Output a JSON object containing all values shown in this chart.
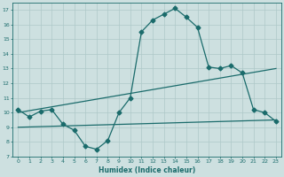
{
  "bg_color": "#cde0e0",
  "line_color": "#1a6b6b",
  "grid_color": "#aec8c8",
  "curve1_x": [
    0,
    1,
    2,
    3,
    4,
    5,
    6,
    7,
    8,
    9,
    10,
    11,
    12,
    13,
    14,
    15,
    16,
    17,
    18,
    19,
    20,
    21,
    22,
    23
  ],
  "curve1_y": [
    10.2,
    9.7,
    10.1,
    10.2,
    9.2,
    8.8,
    7.7,
    7.5,
    8.1,
    10.0,
    11.0,
    15.5,
    16.3,
    16.7,
    17.1,
    16.5,
    15.8,
    13.1,
    13.0,
    13.2,
    12.7,
    10.2,
    10.0,
    9.4
  ],
  "curve2_x": [
    0,
    23
  ],
  "curve2_y": [
    10.0,
    13.0
  ],
  "curve3_x": [
    0,
    23
  ],
  "curve3_y": [
    9.0,
    9.5
  ],
  "xlim": [
    -0.5,
    23.5
  ],
  "ylim": [
    7,
    17.5
  ],
  "yticks": [
    7,
    8,
    9,
    10,
    11,
    12,
    13,
    14,
    15,
    16,
    17
  ],
  "xticks": [
    0,
    1,
    2,
    3,
    4,
    5,
    6,
    7,
    8,
    9,
    10,
    11,
    12,
    13,
    14,
    15,
    16,
    17,
    18,
    19,
    20,
    21,
    22,
    23
  ],
  "xlabel": "Humidex (Indice chaleur)",
  "marker": "D",
  "markersize": 2.5,
  "linewidth": 0.9
}
